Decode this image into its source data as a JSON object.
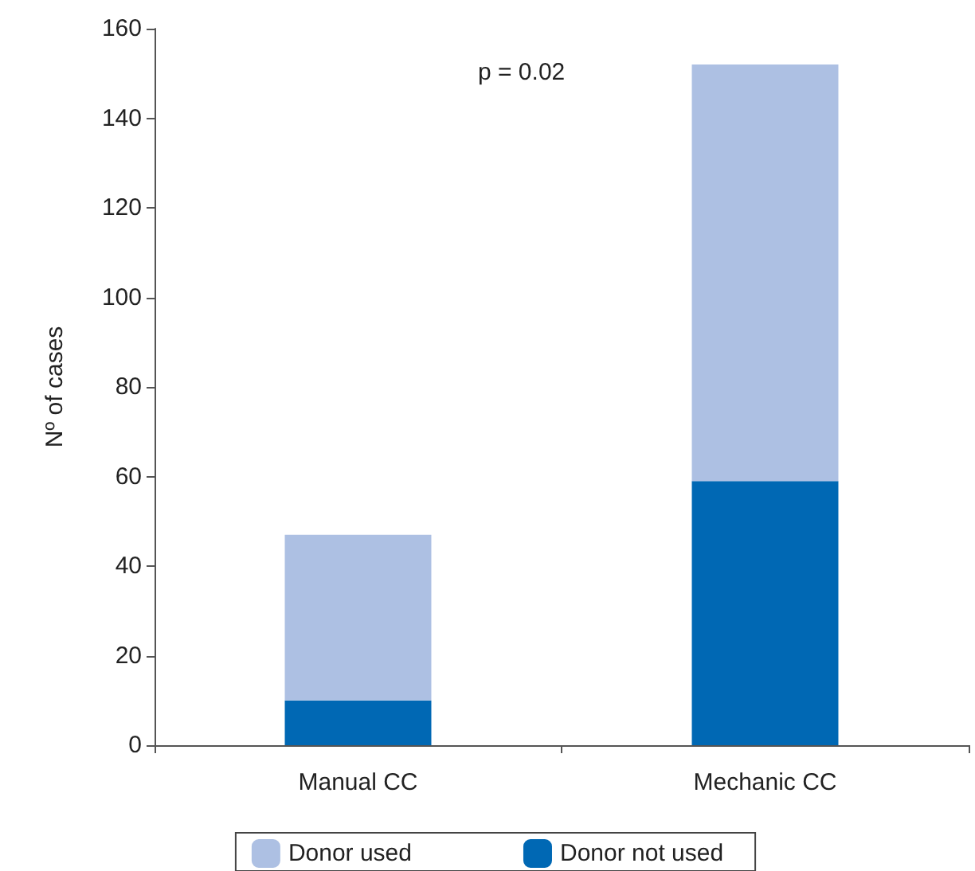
{
  "chart_data": {
    "type": "bar",
    "stacked": true,
    "ylabel": "Nº of cases",
    "categories": [
      "Manual CC",
      "Mechanic CC"
    ],
    "series": [
      {
        "name": "Donor not used",
        "color": "#0068b4",
        "values": [
          10,
          59
        ]
      },
      {
        "name": "Donor used",
        "color": "#adc0e3",
        "values": [
          37,
          93
        ]
      }
    ],
    "ylim": [
      0,
      160
    ],
    "yticks": [
      0,
      20,
      40,
      60,
      80,
      100,
      120,
      140,
      160
    ],
    "legend": "bottom",
    "grid": false,
    "annotations": [
      "p = 0.02"
    ]
  }
}
